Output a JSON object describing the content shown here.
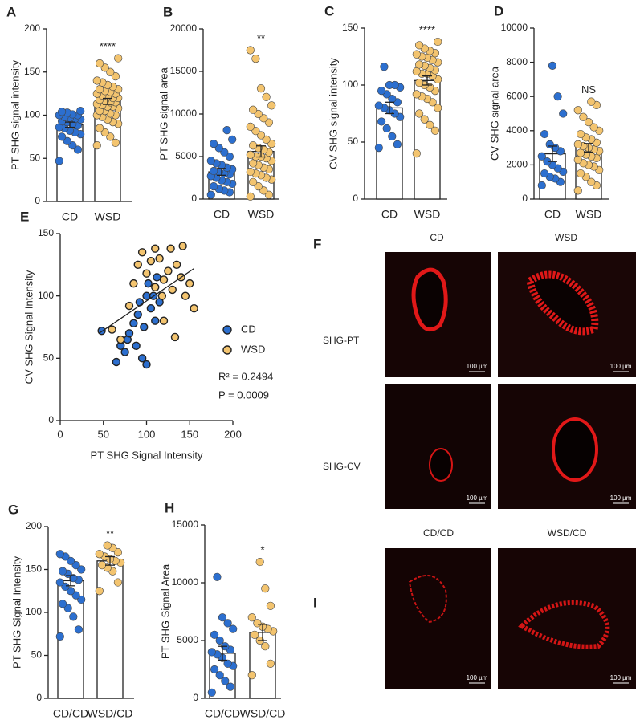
{
  "chart_data": [
    {
      "type": "bar_dot",
      "label": "A",
      "ylabel": "PT SHG signal intensity",
      "categories": [
        "CD",
        "WSD"
      ],
      "values": [
        89,
        116
      ],
      "errors": [
        3,
        3.5
      ],
      "colors": [
        "#2c6fcf",
        "#f3c46f"
      ],
      "significance": "****",
      "ylim": [
        0,
        200
      ],
      "yticks": [
        0,
        50,
        100,
        150,
        200
      ],
      "points": [
        [
          47,
          60,
          65,
          70,
          75,
          78,
          80,
          82,
          85,
          86,
          88,
          90,
          92,
          93,
          95,
          96,
          97,
          98,
          100,
          100,
          101,
          103,
          104,
          105
        ],
        [
          65,
          68,
          75,
          80,
          85,
          90,
          92,
          95,
          98,
          100,
          100,
          102,
          105,
          105,
          108,
          110,
          110,
          112,
          113,
          115,
          115,
          117,
          118,
          120,
          120,
          122,
          123,
          125,
          125,
          127,
          128,
          130,
          130,
          133,
          135,
          138,
          140,
          145,
          150,
          155,
          160,
          166
        ]
      ]
    },
    {
      "type": "bar_dot",
      "label": "B",
      "ylabel": "PT SHG signal area",
      "categories": [
        "CD",
        "WSD"
      ],
      "values": [
        3200,
        5600
      ],
      "errors": [
        400,
        650
      ],
      "colors": [
        "#2c6fcf",
        "#f3c46f"
      ],
      "significance": "**",
      "ylim": [
        0,
        20000
      ],
      "yticks": [
        0,
        5000,
        10000,
        15000,
        20000
      ],
      "points": [
        [
          500,
          800,
          1000,
          1200,
          1500,
          1800,
          2000,
          2200,
          2500,
          2700,
          2900,
          3000,
          3200,
          3300,
          3500,
          3700,
          4000,
          4200,
          4500,
          5000,
          5500,
          6000,
          6500,
          7000,
          8100
        ],
        [
          300,
          500,
          1000,
          1500,
          2000,
          2300,
          2500,
          2800,
          3000,
          3200,
          3500,
          3700,
          4000,
          4200,
          4500,
          4800,
          5000,
          5000,
          5200,
          5500,
          5800,
          6000,
          6300,
          6500,
          7000,
          7500,
          8000,
          8500,
          9000,
          9500,
          10000,
          10500,
          11000,
          12000,
          13000,
          16500,
          17500
        ]
      ]
    },
    {
      "type": "bar_dot",
      "label": "C",
      "ylabel": "CV SHG signal intensity",
      "categories": [
        "CD",
        "WSD"
      ],
      "values": [
        80,
        104
      ],
      "errors": [
        5,
        4
      ],
      "colors": [
        "#2c6fcf",
        "#f3c46f"
      ],
      "significance": "****",
      "ylim": [
        0,
        150
      ],
      "yticks": [
        0,
        50,
        100,
        150
      ],
      "points": [
        [
          45,
          48,
          55,
          62,
          68,
          72,
          75,
          78,
          80,
          82,
          85,
          88,
          92,
          95,
          98,
          100,
          100,
          116
        ],
        [
          40,
          60,
          65,
          70,
          75,
          80,
          85,
          88,
          90,
          92,
          95,
          98,
          100,
          102,
          105,
          108,
          110,
          110,
          112,
          113,
          115,
          117,
          118,
          120,
          122,
          124,
          125,
          127,
          128,
          130,
          132,
          135,
          138
        ]
      ]
    },
    {
      "type": "bar_dot",
      "label": "D",
      "ylabel": "CV SHG signal area",
      "categories": [
        "CD",
        "WSD"
      ],
      "values": [
        2650,
        3000
      ],
      "errors": [
        450,
        250
      ],
      "colors": [
        "#2c6fcf",
        "#f3c46f"
      ],
      "significance": "NS",
      "ylim": [
        0,
        10000
      ],
      "yticks": [
        0,
        2000,
        4000,
        6000,
        8000,
        10000
      ],
      "points": [
        [
          800,
          1000,
          1200,
          1300,
          1500,
          1600,
          1800,
          2000,
          2200,
          2500,
          2800,
          3000,
          3200,
          3800,
          5000,
          6000,
          7800
        ],
        [
          500,
          800,
          1000,
          1300,
          1500,
          1700,
          1900,
          2000,
          2100,
          2300,
          2400,
          2500,
          2600,
          2700,
          2800,
          2900,
          3000,
          3100,
          3200,
          3300,
          3500,
          3600,
          3800,
          4000,
          4200,
          4500,
          4800,
          5200,
          5500,
          5700
        ]
      ]
    },
    {
      "type": "scatter",
      "label": "E",
      "xlabel": "PT SHG Signal Intensity",
      "ylabel": "CV SHG Signal Intensity",
      "xlim": [
        0,
        200
      ],
      "xticks": [
        0,
        50,
        100,
        150,
        200
      ],
      "ylim": [
        0,
        150
      ],
      "yticks": [
        0,
        50,
        100,
        150
      ],
      "series": [
        {
          "name": "CD",
          "color": "#2c6fcf",
          "x": [
            48,
            65,
            70,
            75,
            78,
            80,
            85,
            88,
            90,
            92,
            95,
            97,
            100,
            100,
            102,
            105,
            108,
            110,
            112,
            115
          ],
          "values": [
            72,
            47,
            60,
            55,
            65,
            70,
            78,
            60,
            85,
            95,
            50,
            75,
            45,
            100,
            110,
            90,
            100,
            80,
            115,
            95
          ]
        },
        {
          "name": "WSD",
          "color": "#f3c46f",
          "x": [
            60,
            70,
            80,
            85,
            90,
            95,
            100,
            105,
            110,
            115,
            118,
            120,
            125,
            128,
            130,
            133,
            135,
            140,
            142,
            145,
            150,
            155,
            120,
            110
          ],
          "values": [
            73,
            65,
            92,
            110,
            125,
            135,
            118,
            128,
            138,
            130,
            100,
            113,
            120,
            138,
            105,
            67,
            125,
            115,
            140,
            100,
            110,
            90,
            80,
            107
          ]
        }
      ],
      "trendline": {
        "x": [
          45,
          155
        ],
        "values": [
          70,
          122
        ]
      },
      "annotations": [
        "R² = 0.2494",
        "P = 0.0009"
      ]
    },
    {
      "type": "bar_dot",
      "label": "G",
      "ylabel": "PT SHG Signal Intensity",
      "categories": [
        "CD/CD",
        "WSD/CD"
      ],
      "values": [
        137,
        160
      ],
      "errors": [
        6,
        5
      ],
      "colors": [
        "#2c6fcf",
        "#f3c46f"
      ],
      "significance": "**",
      "ylim": [
        0,
        200
      ],
      "yticks": [
        0,
        50,
        100,
        150,
        200
      ],
      "points": [
        [
          72,
          80,
          95,
          105,
          110,
          115,
          120,
          125,
          130,
          135,
          138,
          140,
          145,
          148,
          150,
          155,
          160,
          165,
          168
        ],
        [
          125,
          135,
          148,
          152,
          155,
          158,
          160,
          162,
          165,
          168,
          170,
          175,
          178
        ]
      ]
    },
    {
      "type": "bar_dot",
      "label": "H",
      "ylabel": "PT SHG Signal Area",
      "categories": [
        "CD/CD",
        "WSD/CD"
      ],
      "values": [
        3900,
        5700
      ],
      "errors": [
        600,
        700
      ],
      "colors": [
        "#2c6fcf",
        "#f3c46f"
      ],
      "significance": "*",
      "ylim": [
        0,
        15000
      ],
      "yticks": [
        0,
        5000,
        10000,
        15000
      ],
      "points": [
        [
          500,
          1000,
          1500,
          2000,
          2500,
          2800,
          3000,
          3500,
          3800,
          4000,
          4200,
          4500,
          5000,
          5500,
          6000,
          6500,
          7000,
          10500
        ],
        [
          2000,
          3000,
          4500,
          5000,
          5500,
          5800,
          6000,
          6200,
          6500,
          7000,
          8000,
          9500,
          11800
        ]
      ]
    }
  ],
  "figure_f": {
    "label": "F",
    "columns": [
      "CD",
      "WSD"
    ],
    "rows": [
      "SHG-PT",
      "SHG-CV"
    ],
    "scale_bars": [
      "100 µm",
      "100 µm",
      "100 µm",
      "100 µm"
    ]
  },
  "figure_i": {
    "label": "I",
    "columns": [
      "CD/CD",
      "WSD/CD"
    ],
    "scale_bars": [
      "100 µm",
      "100 µm"
    ]
  }
}
